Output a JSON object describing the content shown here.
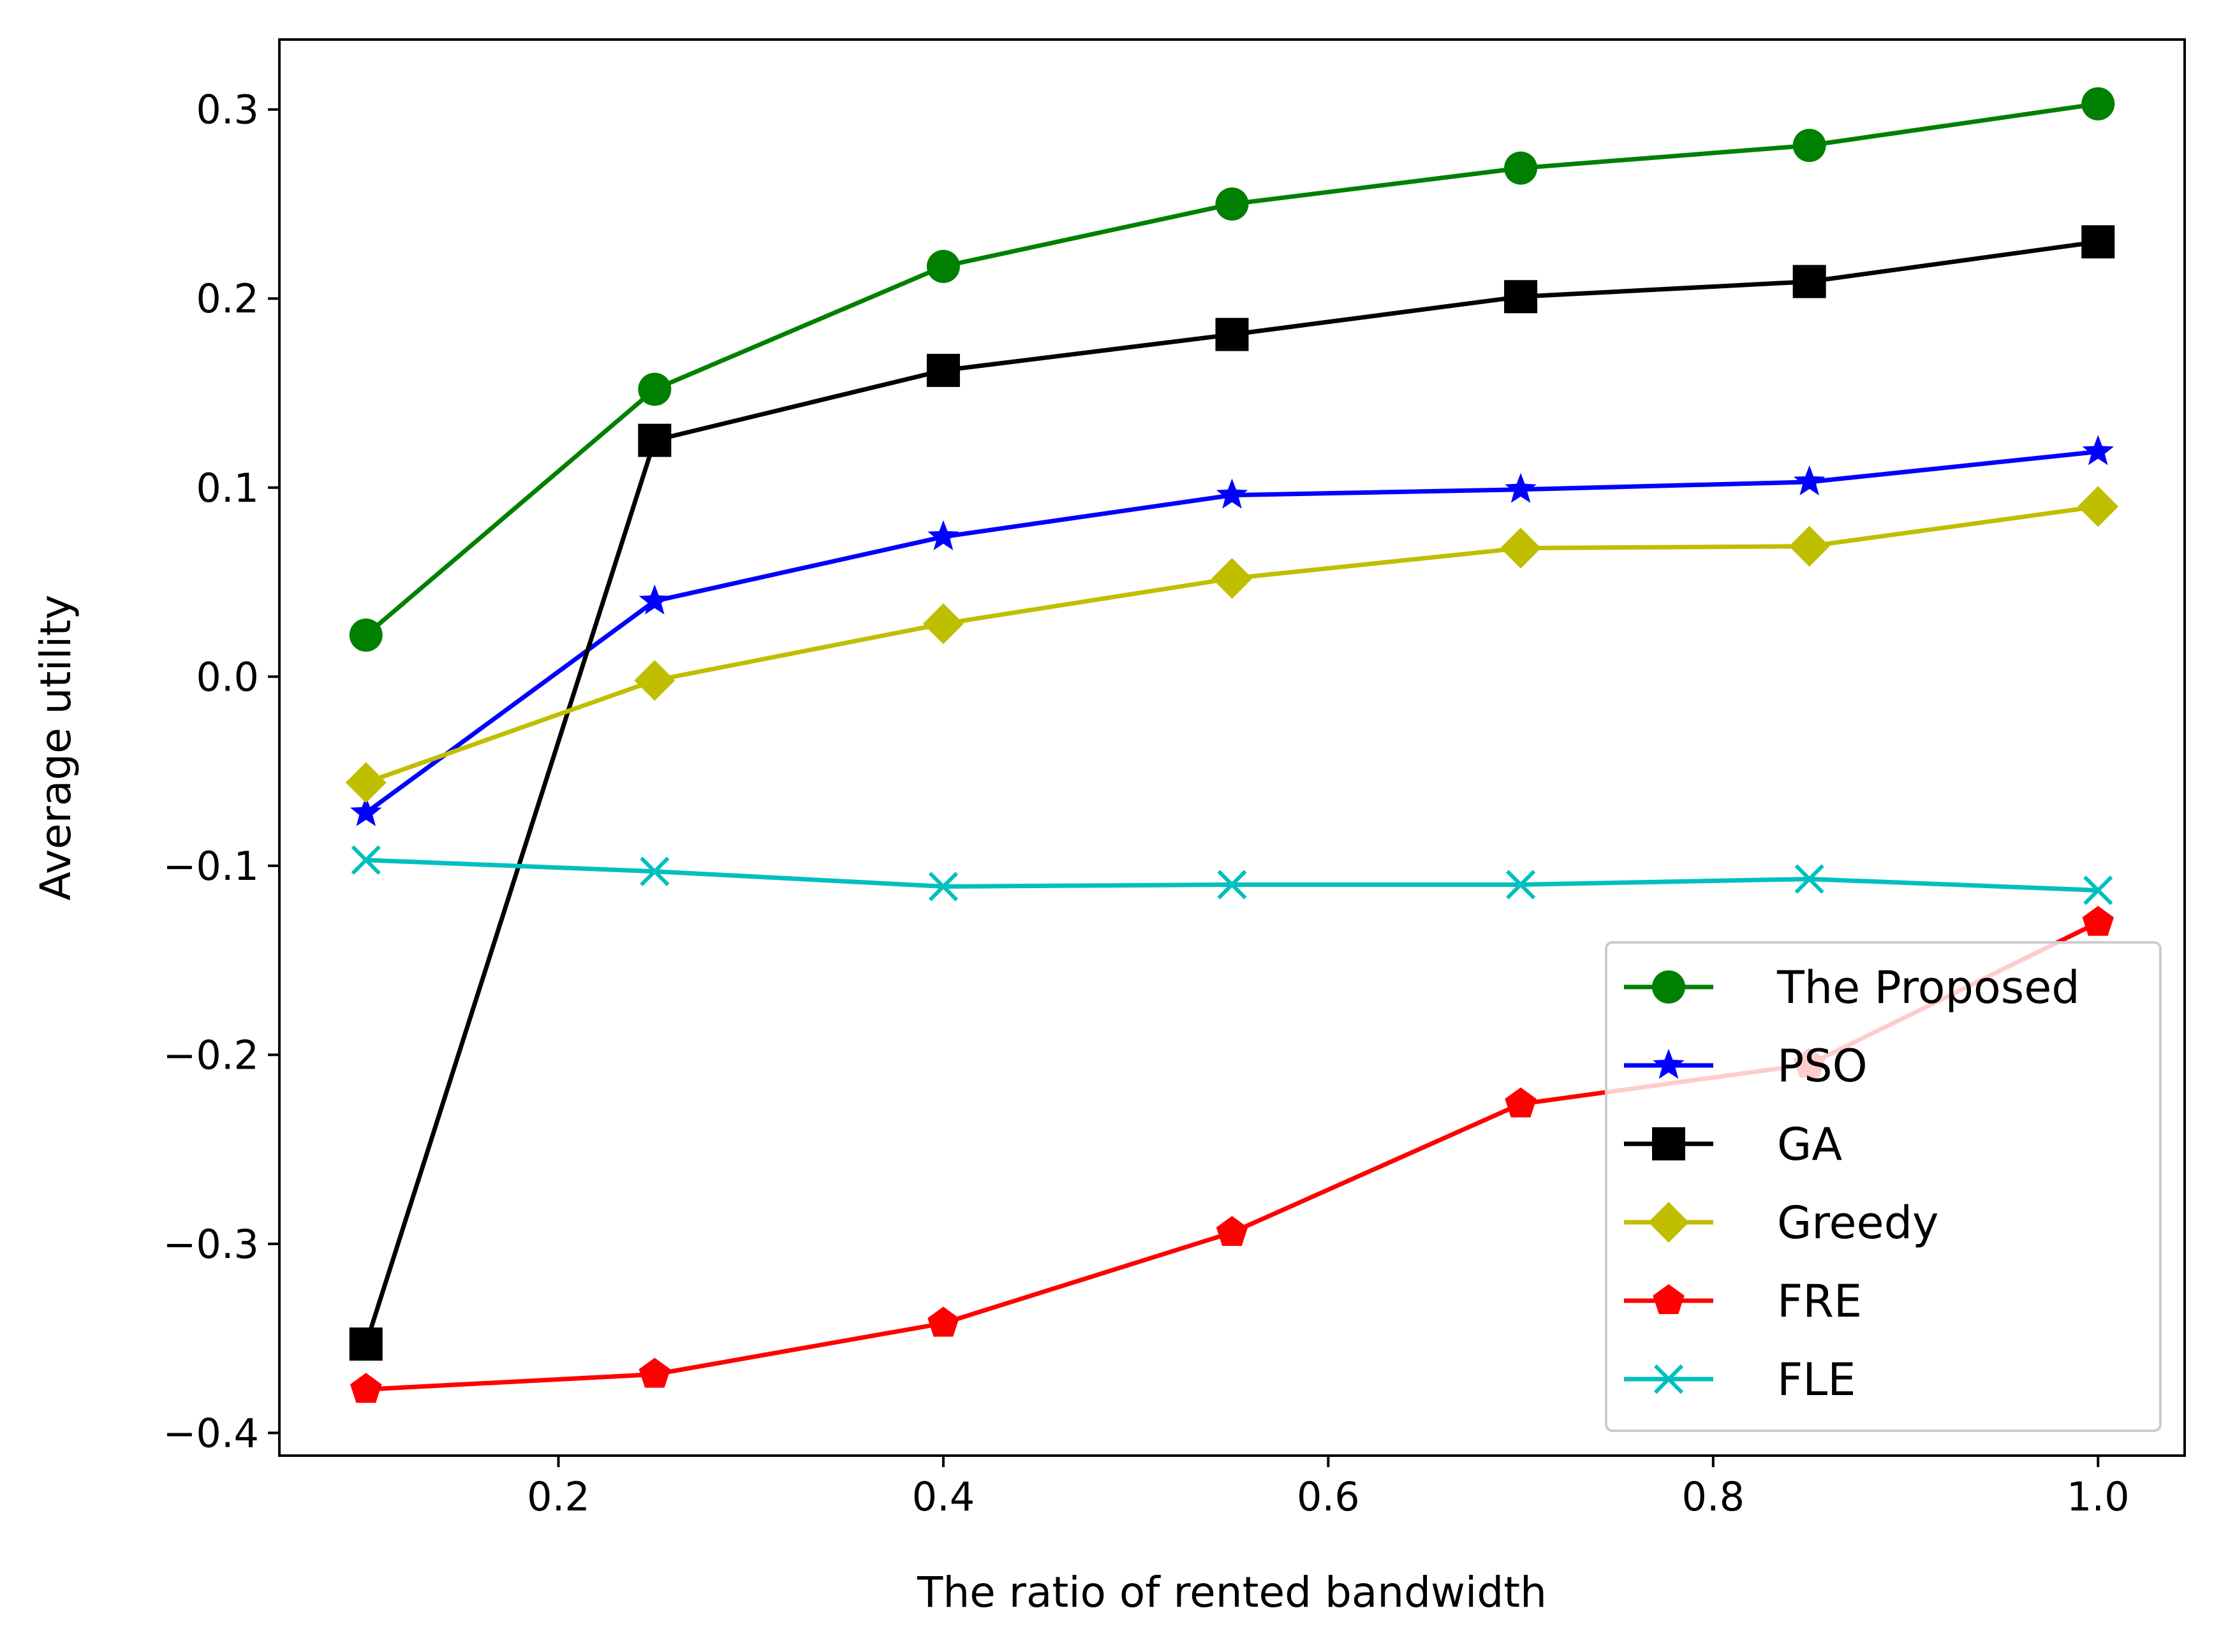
{
  "chart_data": {
    "type": "line",
    "title": "",
    "xlabel": "The ratio of rented bandwidth",
    "ylabel": "Average utility",
    "xlim": [
      0.055,
      1.045
    ],
    "ylim": [
      -0.412,
      0.337
    ],
    "x": [
      0.1,
      0.25,
      0.4,
      0.55,
      0.7,
      0.85,
      1.0
    ],
    "xticks": [
      0.2,
      0.4,
      0.6,
      0.8,
      1.0
    ],
    "xtick_labels": [
      "0.2",
      "0.4",
      "0.6",
      "0.8",
      "1.0"
    ],
    "yticks": [
      -0.4,
      -0.3,
      -0.2,
      -0.1,
      0.0,
      0.1,
      0.2,
      0.3
    ],
    "ytick_labels": [
      "−0.4",
      "−0.3",
      "−0.2",
      "−0.1",
      "0.0",
      "0.1",
      "0.2",
      "0.3"
    ],
    "grid": false,
    "legend_position": "lower-right",
    "series": [
      {
        "name": "The Proposed",
        "color": "#008000",
        "marker": "circle",
        "values": [
          0.022,
          0.152,
          0.217,
          0.25,
          0.269,
          0.281,
          0.303
        ]
      },
      {
        "name": "PSO",
        "color": "#0000ff",
        "marker": "star",
        "values": [
          -0.072,
          0.04,
          0.074,
          0.096,
          0.099,
          0.103,
          0.119
        ]
      },
      {
        "name": "GA",
        "color": "#000000",
        "marker": "square",
        "values": [
          -0.353,
          0.125,
          0.162,
          0.181,
          0.201,
          0.209,
          0.23
        ]
      },
      {
        "name": "Greedy",
        "color": "#bfbf00",
        "marker": "diamond",
        "values": [
          -0.056,
          -0.002,
          0.028,
          0.052,
          0.068,
          0.069,
          0.09
        ]
      },
      {
        "name": "FRE",
        "color": "#ff0000",
        "marker": "pentagon",
        "values": [
          -0.377,
          -0.369,
          -0.342,
          -0.294,
          -0.226,
          -0.205,
          -0.13
        ]
      },
      {
        "name": "FLE",
        "color": "#00bfbf",
        "marker": "x",
        "values": [
          -0.097,
          -0.103,
          -0.111,
          -0.11,
          -0.11,
          -0.107,
          -0.113
        ]
      }
    ]
  }
}
